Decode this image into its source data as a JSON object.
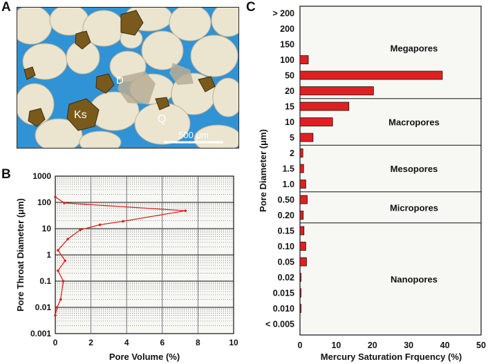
{
  "panel_a": {
    "letter": "A",
    "labels": {
      "d": "D",
      "ks": "Ks",
      "q": "Q"
    },
    "scale_bar": "500 μm",
    "colors": {
      "pore": "#2f93d6",
      "grain": "#ebe4cf",
      "feldspar": "#7a5a1c"
    }
  },
  "panel_b": {
    "letter": "B"
  },
  "panel_c": {
    "letter": "C"
  },
  "chart_data": [
    {
      "type": "line",
      "panel": "B",
      "xlabel": "Pore Volume (%)",
      "ylabel": "Pore Throat Diameter (μm)",
      "xlim": [
        0,
        10
      ],
      "ylim": [
        0.001,
        1000
      ],
      "yscale": "log",
      "xticks": [
        "0",
        "2",
        "4",
        "6",
        "8",
        "10"
      ],
      "yticks": [
        "0.001",
        "0.01",
        "0.1",
        "1",
        "10",
        "100",
        "1000"
      ],
      "grid": true,
      "color": "#e02020",
      "x": [
        0,
        0.5,
        7.3,
        3.8,
        2.5,
        1.4,
        0.7,
        0.15,
        0.55,
        0.15,
        0.45,
        0.3,
        0.1,
        0
      ],
      "y": [
        160,
        95,
        48,
        19,
        14,
        9,
        4,
        1.5,
        0.6,
        0.25,
        0.1,
        0.02,
        0.01,
        0.005
      ]
    },
    {
      "type": "bar",
      "panel": "C",
      "orientation": "horizontal",
      "xlabel": "Mercury Saturation Frquency (%)",
      "ylabel": "Pore Diameter (μm)",
      "xlim": [
        0,
        50
      ],
      "xticks": [
        "0",
        "10",
        "20",
        "30",
        "40",
        "50"
      ],
      "color": "#e02020",
      "categories": [
        "> 200",
        "200",
        "150",
        "100",
        "50",
        "20",
        "15",
        "10",
        "5",
        "2",
        "1.5",
        "1.0",
        "0.50",
        "0.20",
        "0.15",
        "0.10",
        "0.05",
        "0.02",
        "0.015",
        "0.010",
        "< 0.005"
      ],
      "values": [
        0,
        0,
        0,
        2.3,
        39.3,
        20.3,
        13.5,
        9.0,
        3.6,
        0.8,
        1.0,
        1.6,
        2.0,
        0.9,
        1.1,
        1.6,
        1.8,
        0.25,
        0.25,
        0.2,
        0
      ],
      "zones": [
        {
          "name": "Megapores",
          "from": "> 200",
          "to": "20"
        },
        {
          "name": "Macropores",
          "from": "15",
          "to": "5"
        },
        {
          "name": "Mesopores",
          "from": "2",
          "to": "1.0"
        },
        {
          "name": "Micropores",
          "from": "0.50",
          "to": "0.20"
        },
        {
          "name": "Nanopores",
          "from": "0.15",
          "to": "< 0.005"
        }
      ]
    }
  ]
}
